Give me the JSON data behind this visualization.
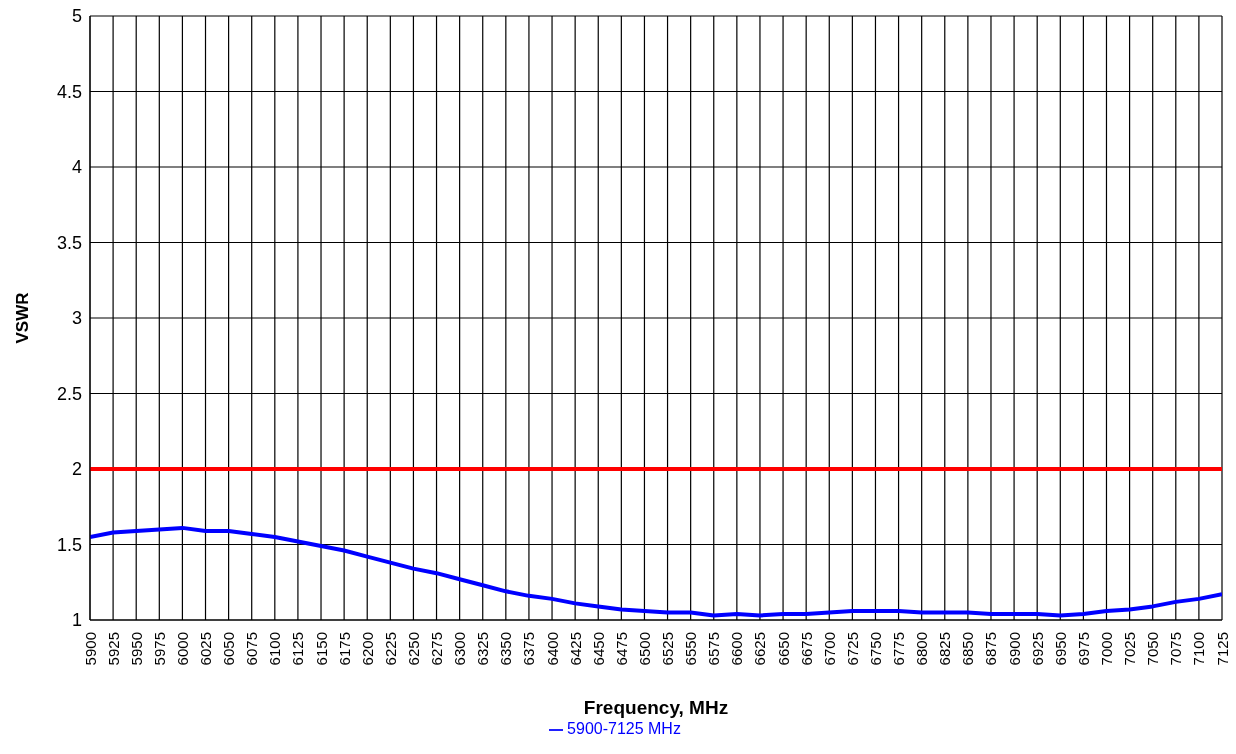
{
  "chart_data": {
    "type": "line",
    "xlabel": "Frequency, MHz",
    "ylabel": "VSWR",
    "x": [
      5900,
      5925,
      5950,
      5975,
      6000,
      6025,
      6050,
      6075,
      6100,
      6125,
      6150,
      6175,
      6200,
      6225,
      6250,
      6275,
      6300,
      6325,
      6350,
      6375,
      6400,
      6425,
      6450,
      6475,
      6500,
      6525,
      6550,
      6575,
      6600,
      6625,
      6650,
      6675,
      6700,
      6725,
      6750,
      6775,
      6800,
      6825,
      6850,
      6875,
      6900,
      6925,
      6950,
      6975,
      7000,
      7025,
      7050,
      7075,
      7100,
      7125
    ],
    "series": [
      {
        "name": "5900-7125 MHz",
        "color": "#0000ff",
        "values": [
          1.55,
          1.58,
          1.59,
          1.6,
          1.61,
          1.59,
          1.59,
          1.57,
          1.55,
          1.52,
          1.49,
          1.46,
          1.42,
          1.38,
          1.34,
          1.31,
          1.27,
          1.23,
          1.19,
          1.16,
          1.14,
          1.11,
          1.09,
          1.07,
          1.06,
          1.05,
          1.05,
          1.03,
          1.04,
          1.03,
          1.04,
          1.04,
          1.05,
          1.06,
          1.06,
          1.06,
          1.05,
          1.05,
          1.05,
          1.04,
          1.04,
          1.04,
          1.03,
          1.04,
          1.06,
          1.07,
          1.09,
          1.12,
          1.14,
          1.17
        ]
      }
    ],
    "xlim": [
      5900,
      7125
    ],
    "xticks": [
      5900,
      5925,
      5950,
      5975,
      6000,
      6025,
      6050,
      6075,
      6100,
      6125,
      6150,
      6175,
      6200,
      6225,
      6250,
      6275,
      6300,
      6325,
      6350,
      6375,
      6400,
      6425,
      6450,
      6475,
      6500,
      6525,
      6550,
      6575,
      6600,
      6625,
      6650,
      6675,
      6700,
      6725,
      6750,
      6775,
      6800,
      6825,
      6850,
      6875,
      6900,
      6925,
      6950,
      6975,
      7000,
      7025,
      7050,
      7075,
      7100,
      7125
    ],
    "ylim": [
      1,
      5
    ],
    "yticks": [
      1,
      1.5,
      2,
      2.5,
      3,
      3.5,
      4,
      4.5,
      5
    ],
    "ref_lines": [
      {
        "axis": "y",
        "value": 2,
        "color": "#ff0000"
      }
    ],
    "grid": true,
    "legend": "bottom",
    "marker": "none",
    "line_style": "solid"
  }
}
